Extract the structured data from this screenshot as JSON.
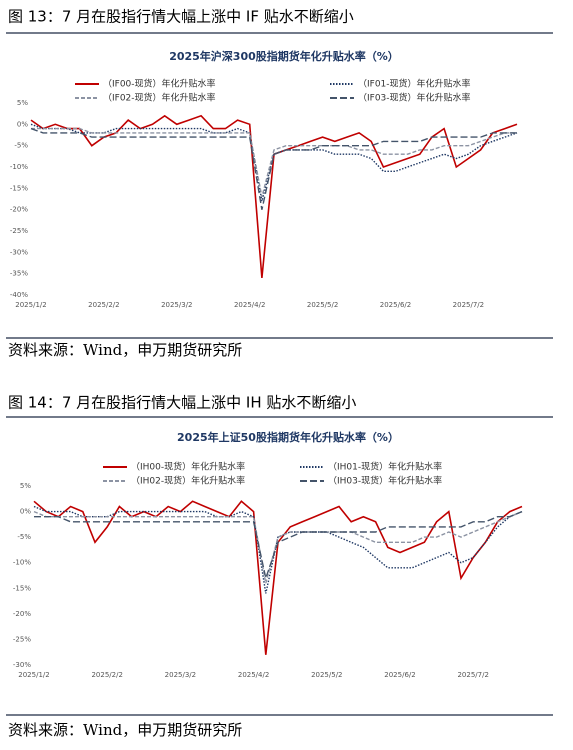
{
  "figures": [
    {
      "caption": "图 13：7 月在股指行情大幅上涨中 IF 贴水不断缩小",
      "source": "资料来源：Wind，申万期货研究所"
    },
    {
      "caption": "图 14：7 月在股指行情大幅上涨中 IH 贴水不断缩小",
      "source": "资料来源：Wind，申万期货研究所"
    }
  ],
  "chart_data": [
    {
      "type": "line",
      "title": "2025年沪深300股指期货年化升贴水率（%）",
      "categories": [
        "2025/1/2",
        null,
        null,
        null,
        null,
        null,
        "2025/2/2",
        null,
        null,
        null,
        null,
        null,
        "2025/3/2",
        null,
        null,
        null,
        null,
        null,
        "2025/4/2",
        null,
        null,
        null,
        null,
        null,
        "2025/5/2",
        null,
        null,
        null,
        null,
        null,
        "2025/6/2",
        null,
        null,
        null,
        null,
        null,
        "2025/7/2",
        null,
        null,
        null,
        null
      ],
      "ylim": [
        -40,
        5
      ],
      "yticks": [
        {
          "value": 5,
          "label": "5%"
        },
        {
          "value": 0,
          "label": "0%"
        },
        {
          "value": -5,
          "label": "-5%"
        },
        {
          "value": -10,
          "label": "-10%"
        },
        {
          "value": -15,
          "label": "-15%"
        },
        {
          "value": -20,
          "label": "-20%"
        },
        {
          "value": -25,
          "label": "-25%"
        },
        {
          "value": -30,
          "label": "-30%"
        },
        {
          "value": -35,
          "label": "-35%"
        },
        {
          "value": -40,
          "label": "-40%"
        }
      ],
      "grid": false,
      "series": [
        {
          "name": "（IF00-现货）年化升贴水率",
          "color": "#c00000",
          "style": "solid",
          "values": [
            1,
            -1,
            0,
            -1,
            -1,
            -5,
            -3,
            -2,
            1,
            -1,
            0,
            2,
            0,
            1,
            2,
            -1,
            -1,
            1,
            0,
            -36,
            -7,
            -6,
            -5,
            -4,
            -3,
            -4,
            -3,
            -2,
            -4,
            -10,
            -9,
            -8,
            -7,
            -3,
            -1,
            -10,
            -8,
            -6,
            -2,
            -1,
            0
          ]
        },
        {
          "name": "（IF01-现货）年化升贴水率",
          "color": "#1f3864",
          "style": "dotted",
          "values": [
            0,
            -1,
            -1,
            -1,
            -2,
            -2,
            -2,
            -1,
            -1,
            -1,
            -1,
            -1,
            -1,
            -1,
            -1,
            -2,
            -2,
            -1,
            -2,
            -18,
            -7,
            -6,
            -6,
            -6,
            -6,
            -7,
            -7,
            -7,
            -8,
            -11,
            -11,
            -10,
            -9,
            -8,
            -7,
            -8,
            -7,
            -5,
            -4,
            -3,
            -2
          ]
        },
        {
          "name": "（IF02-现货）年化升贴水率",
          "color": "#8c93a3",
          "style": "dashed",
          "values": [
            -1,
            -1,
            -1,
            -1,
            -1,
            -2,
            -2,
            -2,
            -2,
            -2,
            -2,
            -2,
            -2,
            -2,
            -2,
            -2,
            -2,
            -2,
            -2,
            -17,
            -6,
            -5,
            -5,
            -5,
            -5,
            -5,
            -5,
            -6,
            -6,
            -7,
            -7,
            -7,
            -6,
            -6,
            -5,
            -5,
            -5,
            -4,
            -3,
            -2,
            -2
          ]
        },
        {
          "name": "（IF03-现货）年化升贴水率",
          "color": "#44546a",
          "style": "longdash",
          "values": [
            -1,
            -2,
            -2,
            -2,
            -2,
            -3,
            -3,
            -3,
            -3,
            -3,
            -3,
            -3,
            -3,
            -3,
            -3,
            -3,
            -3,
            -3,
            -3,
            -20,
            -7,
            -6,
            -6,
            -6,
            -5,
            -5,
            -5,
            -5,
            -5,
            -4,
            -4,
            -4,
            -4,
            -3,
            -3,
            -3,
            -3,
            -3,
            -2,
            -2,
            -2
          ]
        }
      ]
    },
    {
      "type": "line",
      "title": "2025年上证50股指期货年化升贴水率（%）",
      "categories": [
        "2025/1/2",
        null,
        null,
        null,
        null,
        null,
        "2025/2/2",
        null,
        null,
        null,
        null,
        null,
        "2025/3/2",
        null,
        null,
        null,
        null,
        null,
        "2025/4/2",
        null,
        null,
        null,
        null,
        null,
        "2025/5/2",
        null,
        null,
        null,
        null,
        null,
        "2025/6/2",
        null,
        null,
        null,
        null,
        null,
        "2025/7/2",
        null,
        null,
        null,
        null
      ],
      "ylim": [
        -30,
        5
      ],
      "yticks": [
        {
          "value": 5,
          "label": "5%"
        },
        {
          "value": 0,
          "label": "0%"
        },
        {
          "value": -5,
          "label": "-5%"
        },
        {
          "value": -10,
          "label": "-10%"
        },
        {
          "value": -15,
          "label": "-15%"
        },
        {
          "value": -20,
          "label": "-20%"
        },
        {
          "value": -25,
          "label": "-25%"
        },
        {
          "value": -30,
          "label": "-30%"
        }
      ],
      "grid": false,
      "series": [
        {
          "name": "（IH00-现货）年化升贴水率",
          "color": "#c00000",
          "style": "solid",
          "values": [
            2,
            0,
            -1,
            1,
            0,
            -6,
            -3,
            1,
            -1,
            0,
            -1,
            1,
            0,
            2,
            1,
            0,
            -1,
            2,
            0,
            -28,
            -6,
            -3,
            -2,
            -1,
            0,
            1,
            -2,
            -1,
            -2,
            -7,
            -8,
            -7,
            -6,
            -2,
            0,
            -13,
            -9,
            -6,
            -2,
            0,
            1
          ]
        },
        {
          "name": "（IH01-现货）年化升贴水率",
          "color": "#1f3864",
          "style": "dotted",
          "values": [
            1,
            0,
            0,
            0,
            -1,
            -1,
            -1,
            0,
            0,
            0,
            0,
            0,
            0,
            0,
            0,
            -1,
            -1,
            0,
            -1,
            -16,
            -5,
            -4,
            -4,
            -4,
            -4,
            -5,
            -6,
            -7,
            -9,
            -11,
            -11,
            -11,
            -10,
            -9,
            -8,
            -10,
            -9,
            -6,
            -3,
            -1,
            0
          ]
        },
        {
          "name": "（IH02-现货）年化升贴水率",
          "color": "#8c93a3",
          "style": "dashed",
          "values": [
            0,
            -1,
            -1,
            -1,
            -1,
            -1,
            -1,
            -1,
            -1,
            -1,
            -1,
            -1,
            -1,
            -1,
            -1,
            -1,
            -1,
            -1,
            -1,
            -14,
            -5,
            -4,
            -4,
            -4,
            -4,
            -4,
            -4,
            -5,
            -6,
            -6,
            -6,
            -6,
            -5,
            -5,
            -4,
            -5,
            -4,
            -3,
            -2,
            -1,
            0
          ]
        },
        {
          "name": "（IH03-现货）年化升贴水率",
          "color": "#44546a",
          "style": "longdash",
          "values": [
            -1,
            -1,
            -1,
            -2,
            -2,
            -2,
            -2,
            -2,
            -2,
            -2,
            -2,
            -2,
            -2,
            -2,
            -2,
            -2,
            -2,
            -2,
            -2,
            -13,
            -6,
            -5,
            -4,
            -4,
            -4,
            -4,
            -4,
            -4,
            -4,
            -3,
            -3,
            -3,
            -3,
            -3,
            -3,
            -3,
            -2,
            -2,
            -1,
            -1,
            0
          ]
        }
      ]
    }
  ]
}
